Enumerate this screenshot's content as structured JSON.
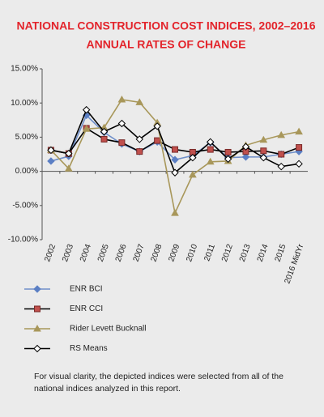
{
  "chart_data": {
    "type": "line",
    "title": "NATIONAL CONSTRUCTION COST INDICES, 2002–2016",
    "subtitle": "ANNUAL RATES OF CHANGE",
    "note": "For visual clarity, the depicted indices were selected from all of the national indices analyzed in this report.",
    "categories": [
      "2002",
      "2003",
      "2004",
      "2005",
      "2006",
      "2007",
      "2008",
      "2009",
      "2010",
      "2011",
      "2012",
      "2013",
      "2014",
      "2015",
      "2016 MidYr"
    ],
    "series": [
      {
        "name": "ENR BCI",
        "color": "#6f8fc9",
        "marker": "diamond",
        "marker_color": "#5b7fc4",
        "values": [
          1.5,
          2.2,
          8.2,
          5.7,
          4.0,
          2.9,
          4.3,
          1.7,
          2.3,
          4.2,
          2.0,
          2.1,
          2.1,
          2.5,
          2.9
        ]
      },
      {
        "name": "ENR CCI",
        "color": "#000000",
        "marker": "square",
        "marker_color": "#c0504d",
        "values": [
          3.1,
          2.6,
          6.3,
          4.7,
          4.2,
          2.9,
          4.5,
          3.2,
          2.8,
          3.2,
          2.8,
          2.9,
          3.0,
          2.5,
          3.5
        ]
      },
      {
        "name": "Rider Levett Bucknall",
        "color": "#a8975a",
        "marker": "triangle",
        "marker_color": "#a8975a",
        "values": [
          3.1,
          0.4,
          6.2,
          6.4,
          10.5,
          10.1,
          7.1,
          -6.1,
          -0.5,
          1.4,
          1.5,
          3.8,
          4.6,
          5.3,
          5.8
        ]
      },
      {
        "name": "RS Means",
        "color": "#000000",
        "marker": "diamond",
        "marker_color": "#ffffff",
        "values": [
          3.1,
          2.6,
          9.0,
          5.8,
          7.0,
          4.7,
          6.6,
          -0.2,
          2.0,
          4.3,
          1.8,
          3.6,
          2.0,
          0.7,
          1.1
        ]
      }
    ],
    "ylim": [
      -10,
      15
    ],
    "yticks": [
      {
        "value": -10,
        "label": "-10.00%"
      },
      {
        "value": -5,
        "label": "-5.00%"
      },
      {
        "value": 0,
        "label": "0.00%"
      },
      {
        "value": 5,
        "label": "5.00%"
      },
      {
        "value": 10,
        "label": "10.00%"
      },
      {
        "value": 15,
        "label": "15.00%"
      }
    ],
    "grid": false,
    "legend": "bottom-left"
  }
}
